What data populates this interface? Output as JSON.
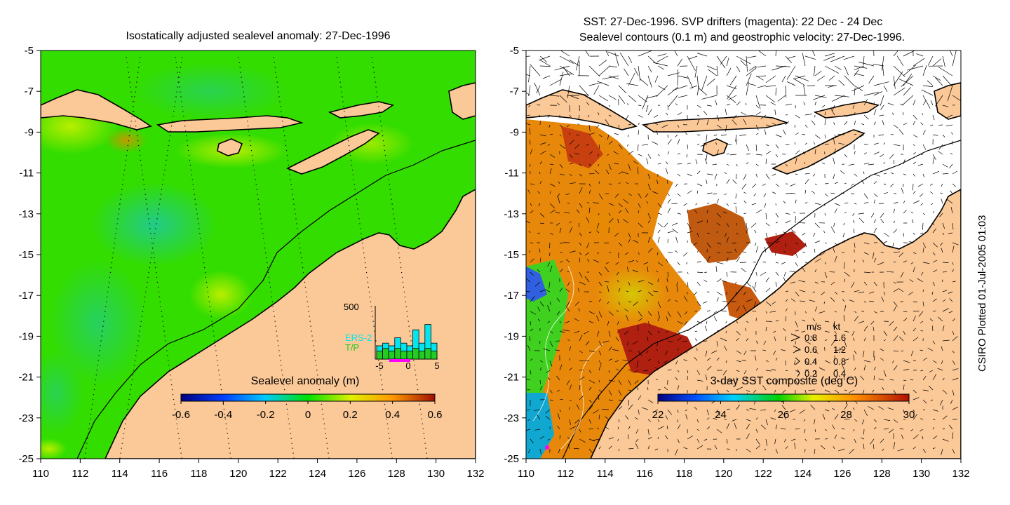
{
  "left_map": {
    "title": "Isostatically adjusted sealevel anomaly: 27-Dec-1996",
    "lon_ticks": [
      "110",
      "112",
      "114",
      "116",
      "118",
      "120",
      "122",
      "124",
      "126",
      "128",
      "130",
      "132"
    ],
    "lat_ticks": [
      "-5",
      "-7",
      "-9",
      "-11",
      "-13",
      "-15",
      "-17",
      "-19",
      "-21",
      "-23",
      "-25"
    ],
    "colorbar": {
      "label": "Sealevel anomaly (m)",
      "ticks": [
        "-0.6",
        "-0.4",
        "-0.2",
        "0",
        "0.2",
        "0.4",
        "0.6"
      ],
      "range": [
        -0.6,
        0.6
      ]
    },
    "histogram": {
      "y_max_label": "500",
      "x_ticks": [
        "-5",
        "0",
        "5"
      ],
      "legend": [
        "ERS-2",
        "T/P"
      ],
      "colors": {
        "ERS-2": "#00e5ee",
        "T/P": "#22cc22"
      },
      "ers2": [
        0.25,
        0.3,
        0.25,
        0.4,
        0.3,
        0.25,
        0.55,
        0.3,
        0.65,
        0.3
      ],
      "tp": [
        0.15,
        0.2,
        0.15,
        0.2,
        0.15,
        0.15,
        0.2,
        0.15,
        0.2,
        0.15
      ]
    }
  },
  "right_map": {
    "title_line1": "SST: 27-Dec-1996. SVP drifters (magenta): 22 Dec - 24 Dec",
    "title_line2": "Sealevel contours (0.1 m) and geostrophic velocity: 27-Dec-1996.",
    "lon_ticks": [
      "110",
      "112",
      "114",
      "116",
      "118",
      "120",
      "122",
      "124",
      "126",
      "128",
      "130",
      "132"
    ],
    "lat_ticks": [
      "-5",
      "-7",
      "-9",
      "-11",
      "-13",
      "-15",
      "-17",
      "-19",
      "-21",
      "-23",
      "-25"
    ],
    "velocity_legend": {
      "header_ms": "m/s",
      "header_kt": "kt",
      "rows": [
        {
          "ms": "0.8",
          "kt": "1.6"
        },
        {
          "ms": "0.6",
          "kt": "1.2"
        },
        {
          "ms": "0.4",
          "kt": "0.8"
        },
        {
          "ms": "0.2",
          "kt": "0.4"
        }
      ]
    },
    "colorbar": {
      "label": "3-day SST composite (deg C)",
      "ticks": [
        "22",
        "24",
        "26",
        "28",
        "30"
      ],
      "range": [
        22,
        30
      ]
    }
  },
  "credit": "CSIRO Plotted 01-Jul-2005 01:03",
  "colors": {
    "land": "#fbc897",
    "sea_base": "#33dd00",
    "no_data": "#ffffff"
  }
}
